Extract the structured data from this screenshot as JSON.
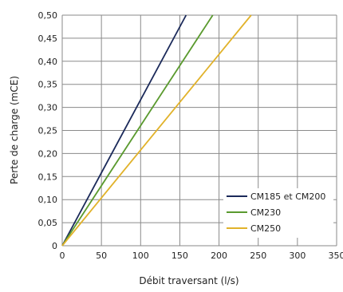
{
  "chart_data": {
    "type": "line",
    "title": "",
    "xlabel": "Débit traversant (l/s)",
    "ylabel": "Perte de charge (mCE)",
    "xlim": [
      0,
      350
    ],
    "ylim": [
      0,
      0.5
    ],
    "x_ticks": [
      0,
      50,
      100,
      150,
      200,
      250,
      300,
      350
    ],
    "y_ticks": [
      0,
      0.05,
      0.1,
      0.15,
      0.2,
      0.25,
      0.3,
      0.35,
      0.4,
      0.45,
      0.5
    ],
    "x_tick_labels": [
      "0",
      "50",
      "100",
      "150",
      "200",
      "250",
      "300",
      "350"
    ],
    "y_tick_labels": [
      "0",
      "0,05",
      "0,10",
      "0,15",
      "0,20",
      "0,25",
      "0,30",
      "0,35",
      "0,40",
      "0,45",
      "0,50"
    ],
    "grid": true,
    "legend_position": "bottom-right",
    "series": [
      {
        "name": "CM185 et CM200",
        "color": "#1b2a5a",
        "points": [
          [
            0,
            0
          ],
          [
            158,
            0.5
          ]
        ]
      },
      {
        "name": "CM230",
        "color": "#5a9a2e",
        "points": [
          [
            0,
            0
          ],
          [
            192,
            0.5
          ]
        ]
      },
      {
        "name": "CM250",
        "color": "#e1b22a",
        "points": [
          [
            0,
            0
          ],
          [
            241,
            0.5
          ]
        ]
      }
    ]
  }
}
